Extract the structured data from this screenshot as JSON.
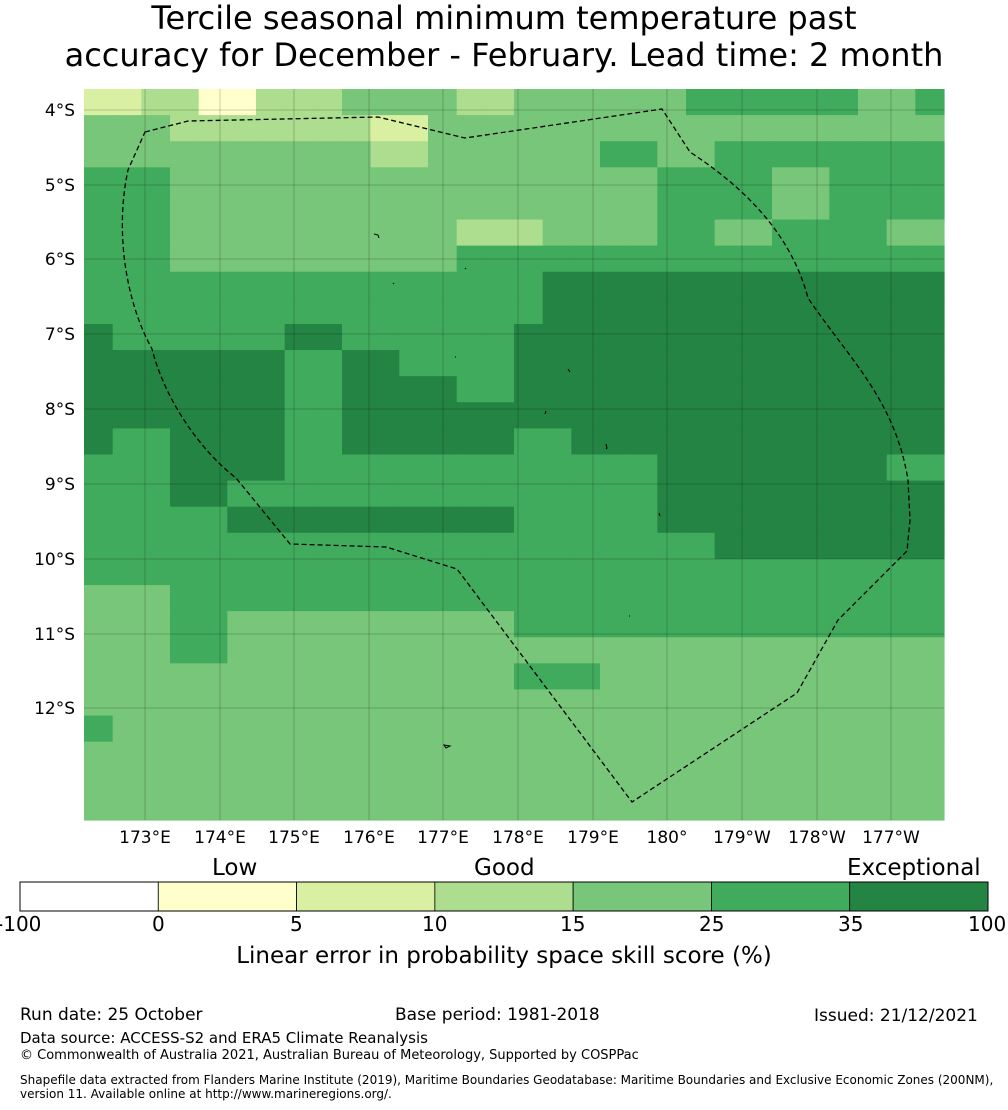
{
  "title": {
    "line1": "Tercile seasonal minimum temperature past",
    "line2": "accuracy for December - February. Lead time: 2 month"
  },
  "map": {
    "lat_labels": [
      "4°S",
      "5°S",
      "6°S",
      "7°S",
      "8°S",
      "9°S",
      "10°S",
      "11°S",
      "12°S"
    ],
    "lon_labels": [
      "173°E",
      "174°E",
      "175°E",
      "176°E",
      "177°E",
      "178°E",
      "179°E",
      "180°",
      "179°W",
      "178°W",
      "177°W"
    ],
    "grid_levels": [
      [
        2,
        2,
        3,
        3,
        1,
        1,
        3,
        3,
        3,
        4,
        4,
        4,
        4,
        3,
        3,
        4,
        4,
        4,
        4,
        4,
        4,
        5,
        5,
        5,
        5,
        5,
        5,
        4,
        4,
        5
      ],
      [
        4,
        4,
        4,
        3,
        3,
        3,
        3,
        3,
        3,
        3,
        2,
        2,
        4,
        4,
        4,
        4,
        4,
        4,
        4,
        4,
        4,
        4,
        4,
        4,
        4,
        4,
        4,
        4,
        4,
        4
      ],
      [
        4,
        4,
        4,
        4,
        4,
        4,
        4,
        4,
        4,
        4,
        3,
        3,
        4,
        4,
        4,
        4,
        4,
        4,
        5,
        5,
        4,
        4,
        5,
        5,
        5,
        5,
        5,
        5,
        5,
        5
      ],
      [
        5,
        5,
        5,
        4,
        4,
        4,
        4,
        4,
        4,
        4,
        4,
        4,
        4,
        4,
        4,
        4,
        4,
        4,
        4,
        4,
        5,
        5,
        5,
        5,
        4,
        4,
        5,
        5,
        5,
        5
      ],
      [
        5,
        5,
        5,
        4,
        4,
        4,
        4,
        4,
        4,
        4,
        4,
        4,
        4,
        4,
        4,
        4,
        4,
        4,
        4,
        4,
        5,
        5,
        5,
        5,
        4,
        4,
        5,
        5,
        5,
        5
      ],
      [
        5,
        5,
        5,
        4,
        4,
        4,
        4,
        4,
        4,
        4,
        4,
        4,
        4,
        3,
        3,
        3,
        4,
        4,
        4,
        4,
        5,
        5,
        4,
        4,
        5,
        5,
        5,
        5,
        4,
        4
      ],
      [
        5,
        5,
        5,
        4,
        4,
        4,
        4,
        4,
        4,
        4,
        4,
        4,
        4,
        5,
        5,
        5,
        5,
        5,
        5,
        5,
        5,
        5,
        5,
        5,
        5,
        5,
        5,
        5,
        5,
        5
      ],
      [
        5,
        5,
        5,
        5,
        5,
        5,
        5,
        5,
        5,
        5,
        5,
        5,
        5,
        5,
        5,
        5,
        6,
        6,
        6,
        6,
        6,
        6,
        6,
        6,
        6,
        6,
        6,
        6,
        6,
        6
      ],
      [
        5,
        5,
        5,
        5,
        5,
        5,
        5,
        5,
        5,
        5,
        5,
        5,
        5,
        5,
        5,
        5,
        6,
        6,
        6,
        6,
        6,
        6,
        6,
        6,
        6,
        6,
        6,
        6,
        6,
        6
      ],
      [
        6,
        5,
        5,
        5,
        5,
        5,
        5,
        6,
        6,
        5,
        5,
        5,
        5,
        5,
        5,
        6,
        6,
        6,
        6,
        6,
        6,
        6,
        6,
        6,
        6,
        6,
        6,
        6,
        6,
        6
      ],
      [
        6,
        6,
        6,
        6,
        6,
        6,
        6,
        5,
        5,
        6,
        6,
        5,
        5,
        5,
        5,
        6,
        6,
        6,
        6,
        6,
        6,
        6,
        6,
        6,
        6,
        6,
        6,
        6,
        6,
        6
      ],
      [
        6,
        6,
        6,
        6,
        6,
        6,
        6,
        5,
        5,
        6,
        6,
        6,
        6,
        5,
        5,
        6,
        6,
        6,
        6,
        6,
        6,
        6,
        6,
        6,
        6,
        6,
        6,
        6,
        6,
        6
      ],
      [
        6,
        6,
        6,
        6,
        6,
        6,
        6,
        5,
        5,
        6,
        6,
        6,
        6,
        6,
        6,
        6,
        6,
        6,
        6,
        6,
        6,
        6,
        6,
        6,
        6,
        6,
        6,
        6,
        6,
        6
      ],
      [
        6,
        5,
        5,
        6,
        6,
        6,
        6,
        5,
        5,
        6,
        6,
        6,
        6,
        6,
        6,
        5,
        5,
        6,
        6,
        6,
        6,
        6,
        6,
        6,
        6,
        6,
        6,
        6,
        6,
        6
      ],
      [
        5,
        5,
        5,
        6,
        6,
        6,
        6,
        5,
        5,
        5,
        5,
        5,
        5,
        5,
        5,
        5,
        5,
        5,
        5,
        5,
        6,
        6,
        6,
        6,
        6,
        6,
        6,
        6,
        5,
        5
      ],
      [
        5,
        5,
        5,
        6,
        6,
        5,
        5,
        5,
        5,
        5,
        5,
        5,
        5,
        5,
        5,
        5,
        5,
        5,
        5,
        5,
        6,
        6,
        6,
        6,
        6,
        6,
        6,
        6,
        6,
        6
      ],
      [
        5,
        5,
        5,
        5,
        5,
        6,
        6,
        6,
        6,
        6,
        6,
        6,
        6,
        6,
        6,
        5,
        5,
        5,
        5,
        5,
        6,
        6,
        6,
        6,
        6,
        6,
        6,
        6,
        6,
        6
      ],
      [
        5,
        5,
        5,
        5,
        5,
        5,
        5,
        5,
        5,
        5,
        5,
        5,
        5,
        5,
        5,
        5,
        5,
        5,
        5,
        5,
        5,
        5,
        6,
        6,
        6,
        6,
        6,
        6,
        6,
        6
      ],
      [
        5,
        5,
        5,
        5,
        5,
        5,
        5,
        5,
        5,
        5,
        5,
        5,
        5,
        5,
        5,
        5,
        5,
        5,
        5,
        5,
        5,
        5,
        5,
        5,
        5,
        5,
        5,
        5,
        5,
        5
      ],
      [
        4,
        4,
        4,
        5,
        5,
        5,
        5,
        5,
        5,
        5,
        5,
        5,
        5,
        5,
        5,
        5,
        5,
        5,
        5,
        5,
        5,
        5,
        5,
        5,
        5,
        5,
        5,
        5,
        5,
        5
      ],
      [
        4,
        4,
        4,
        5,
        5,
        4,
        4,
        4,
        4,
        4,
        4,
        4,
        4,
        4,
        4,
        5,
        5,
        5,
        5,
        5,
        5,
        5,
        5,
        5,
        5,
        5,
        5,
        5,
        5,
        5
      ],
      [
        4,
        4,
        4,
        5,
        5,
        4,
        4,
        4,
        4,
        4,
        4,
        4,
        4,
        4,
        4,
        4,
        4,
        4,
        4,
        4,
        4,
        4,
        4,
        4,
        4,
        4,
        4,
        4,
        4,
        4
      ],
      [
        4,
        4,
        4,
        4,
        4,
        4,
        4,
        4,
        4,
        4,
        4,
        4,
        4,
        4,
        4,
        5,
        5,
        5,
        4,
        4,
        4,
        4,
        4,
        4,
        4,
        4,
        4,
        4,
        4,
        4
      ],
      [
        4,
        4,
        4,
        4,
        4,
        4,
        4,
        4,
        4,
        4,
        4,
        4,
        4,
        4,
        4,
        4,
        4,
        4,
        4,
        4,
        4,
        4,
        4,
        4,
        4,
        4,
        4,
        4,
        4,
        4
      ],
      [
        5,
        4,
        4,
        4,
        4,
        4,
        4,
        4,
        4,
        4,
        4,
        4,
        4,
        4,
        4,
        4,
        4,
        4,
        4,
        4,
        4,
        4,
        4,
        4,
        4,
        4,
        4,
        4,
        4,
        4
      ],
      [
        4,
        4,
        4,
        4,
        4,
        4,
        4,
        4,
        4,
        4,
        4,
        4,
        4,
        4,
        4,
        4,
        4,
        4,
        4,
        4,
        4,
        4,
        4,
        4,
        4,
        4,
        4,
        4,
        4,
        4
      ],
      [
        4,
        4,
        4,
        4,
        4,
        4,
        4,
        4,
        4,
        4,
        4,
        4,
        4,
        4,
        4,
        4,
        4,
        4,
        4,
        4,
        4,
        4,
        4,
        4,
        4,
        4,
        4,
        4,
        4,
        4
      ],
      [
        4,
        4,
        4,
        4,
        4,
        4,
        4,
        4,
        4,
        4,
        4,
        4,
        4,
        4,
        4,
        4,
        4,
        4,
        4,
        4,
        4,
        4,
        4,
        4,
        4,
        4,
        4,
        4,
        4,
        4
      ]
    ]
  },
  "colorbar": {
    "category_labels": [
      "Low",
      "Good",
      "Exceptional"
    ],
    "bins": [
      {
        "from": -100,
        "to": 0,
        "color": "#ffffff"
      },
      {
        "from": 0,
        "to": 5,
        "color": "#ffffcc"
      },
      {
        "from": 5,
        "to": 10,
        "color": "#d9f0a3"
      },
      {
        "from": 10,
        "to": 15,
        "color": "#addd8e"
      },
      {
        "from": 15,
        "to": 25,
        "color": "#78c679"
      },
      {
        "from": 25,
        "to": 35,
        "color": "#41ab5d"
      },
      {
        "from": 35,
        "to": 100,
        "color": "#238443"
      }
    ],
    "ticks": [
      "-100",
      "0",
      "5",
      "10",
      "15",
      "25",
      "35",
      "100"
    ],
    "title": "Linear error in probability space skill score (%)"
  },
  "footer": {
    "run_date": "Run date: 25 October",
    "base_period": "Base period: 1981-2018",
    "issued": "Issued: 21/12/2021",
    "data_source": "Data source: ACCESS-S2 and ERA5 Climate Reanalysis",
    "copyright": "© Commonwealth of Australia 2021, Australian Bureau of Meteorology, Supported by COSPPac",
    "shapefile_line1": "Shapefile data extracted from Flanders Marine Institute (2019), Maritime Boundaries Geodatabase: Maritime Boundaries and Exclusive Economic Zones (200NM),",
    "shapefile_line2": "version 11. Available online at http://www.marineregions.org/."
  }
}
